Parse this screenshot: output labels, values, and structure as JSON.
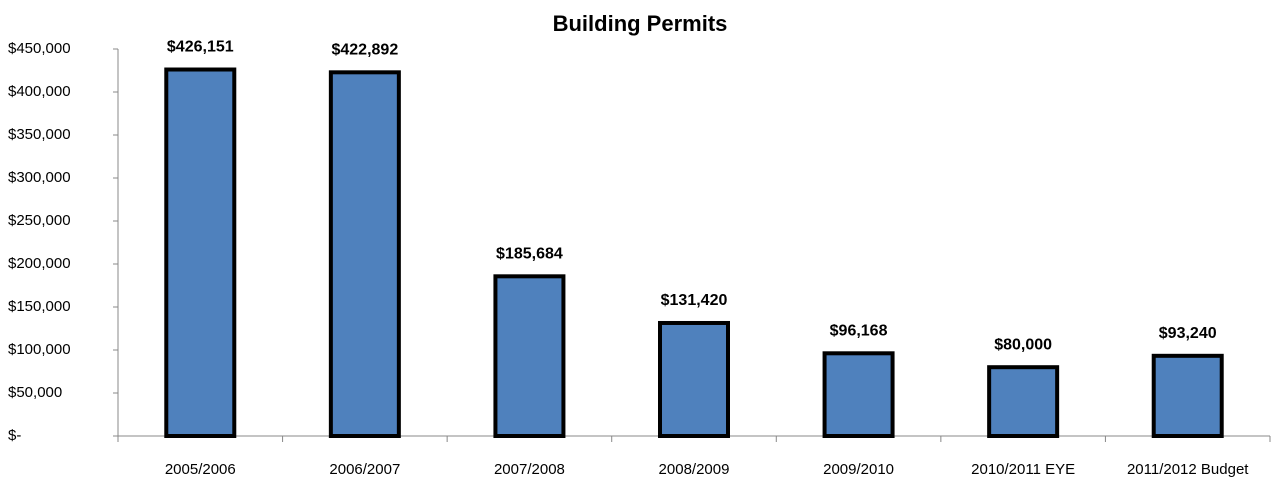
{
  "chart_data": {
    "type": "bar",
    "title": "Building Permits",
    "categories": [
      "2005/2006",
      "2006/2007",
      "2007/2008",
      "2008/2009",
      "2009/2010",
      "2010/2011 EYE",
      "2011/2012 Budget"
    ],
    "values": [
      426151,
      422892,
      185684,
      131420,
      96168,
      80000,
      93240
    ],
    "value_labels": [
      "$426,151",
      "$422,892",
      "$185,684",
      "$131,420",
      "$96,168",
      "$80,000",
      "$93,240"
    ],
    "color": "#4f81bd",
    "ylim": [
      0,
      450000
    ],
    "yticks": [
      {
        "value": 0,
        "label": "$-"
      },
      {
        "value": 50000,
        "label": "$50,000"
      },
      {
        "value": 100000,
        "label": "$100,000"
      },
      {
        "value": 150000,
        "label": "$150,000"
      },
      {
        "value": 200000,
        "label": "$200,000"
      },
      {
        "value": 250000,
        "label": "$250,000"
      },
      {
        "value": 300000,
        "label": "$300,000"
      },
      {
        "value": 350000,
        "label": "$350,000"
      },
      {
        "value": 400000,
        "label": "$400,000"
      },
      {
        "value": 450000,
        "label": "$450,000"
      }
    ],
    "grid": false
  }
}
